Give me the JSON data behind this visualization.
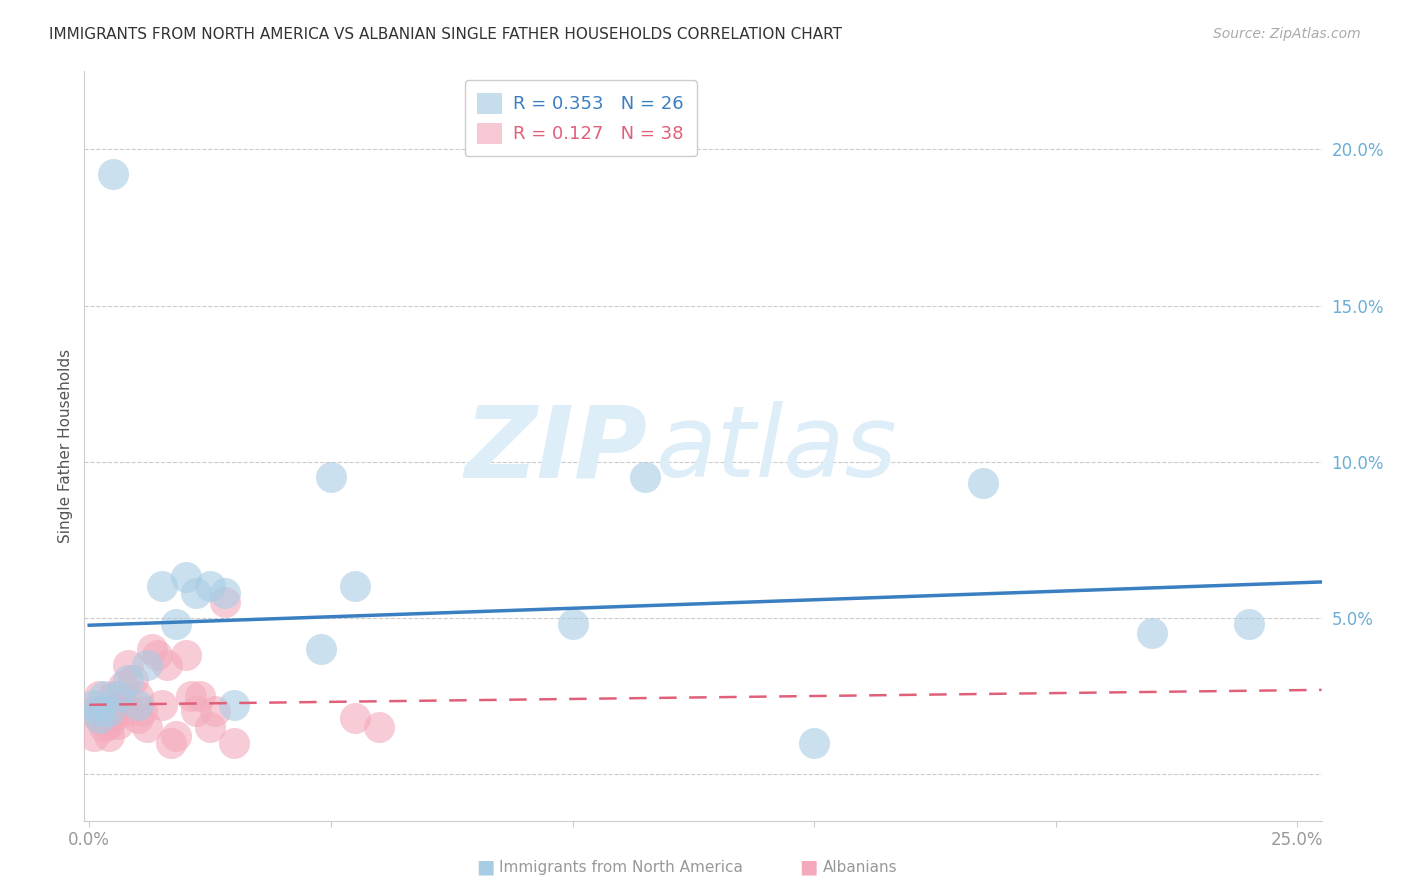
{
  "title": "IMMIGRANTS FROM NORTH AMERICA VS ALBANIAN SINGLE FATHER HOUSEHOLDS CORRELATION CHART",
  "source": "Source: ZipAtlas.com",
  "ylabel": "Single Father Households",
  "xlim": [
    -0.001,
    0.255
  ],
  "ylim": [
    -0.015,
    0.225
  ],
  "blue_R": 0.353,
  "blue_N": 26,
  "pink_R": 0.127,
  "pink_N": 38,
  "blue_color": "#a8cce4",
  "pink_color": "#f4aabc",
  "blue_line_color": "#3a7fc1",
  "pink_line_color": "#e0607a",
  "blue_x": [
    0.001,
    0.002,
    0.003,
    0.004,
    0.005,
    0.006,
    0.008,
    0.01,
    0.012,
    0.015,
    0.018,
    0.02,
    0.022,
    0.025,
    0.028,
    0.048,
    0.05,
    0.055,
    0.1,
    0.115,
    0.15,
    0.185,
    0.22,
    0.24,
    0.002,
    0.03
  ],
  "blue_y": [
    0.022,
    0.02,
    0.025,
    0.02,
    0.192,
    0.025,
    0.03,
    0.022,
    0.035,
    0.06,
    0.048,
    0.063,
    0.058,
    0.06,
    0.058,
    0.04,
    0.095,
    0.06,
    0.048,
    0.095,
    0.01,
    0.093,
    0.045,
    0.048,
    0.018,
    0.022
  ],
  "pink_x": [
    0.001,
    0.001,
    0.002,
    0.002,
    0.003,
    0.003,
    0.004,
    0.004,
    0.005,
    0.005,
    0.005,
    0.006,
    0.006,
    0.007,
    0.007,
    0.008,
    0.008,
    0.009,
    0.01,
    0.01,
    0.011,
    0.012,
    0.013,
    0.014,
    0.015,
    0.016,
    0.017,
    0.018,
    0.02,
    0.021,
    0.022,
    0.023,
    0.025,
    0.026,
    0.028,
    0.03,
    0.055,
    0.06
  ],
  "pink_y": [
    0.012,
    0.02,
    0.018,
    0.025,
    0.015,
    0.02,
    0.012,
    0.016,
    0.025,
    0.018,
    0.02,
    0.022,
    0.016,
    0.028,
    0.022,
    0.035,
    0.02,
    0.03,
    0.018,
    0.025,
    0.02,
    0.015,
    0.04,
    0.038,
    0.022,
    0.035,
    0.01,
    0.012,
    0.038,
    0.025,
    0.02,
    0.025,
    0.015,
    0.02,
    0.055,
    0.01,
    0.018,
    0.015
  ],
  "watermark_zip": "ZIP",
  "watermark_atlas": "atlas",
  "background_color": "#ffffff",
  "grid_color": "#cccccc",
  "legend_blue_text": "R = 0.353   N = 26",
  "legend_pink_text": "R = 0.127   N = 38"
}
